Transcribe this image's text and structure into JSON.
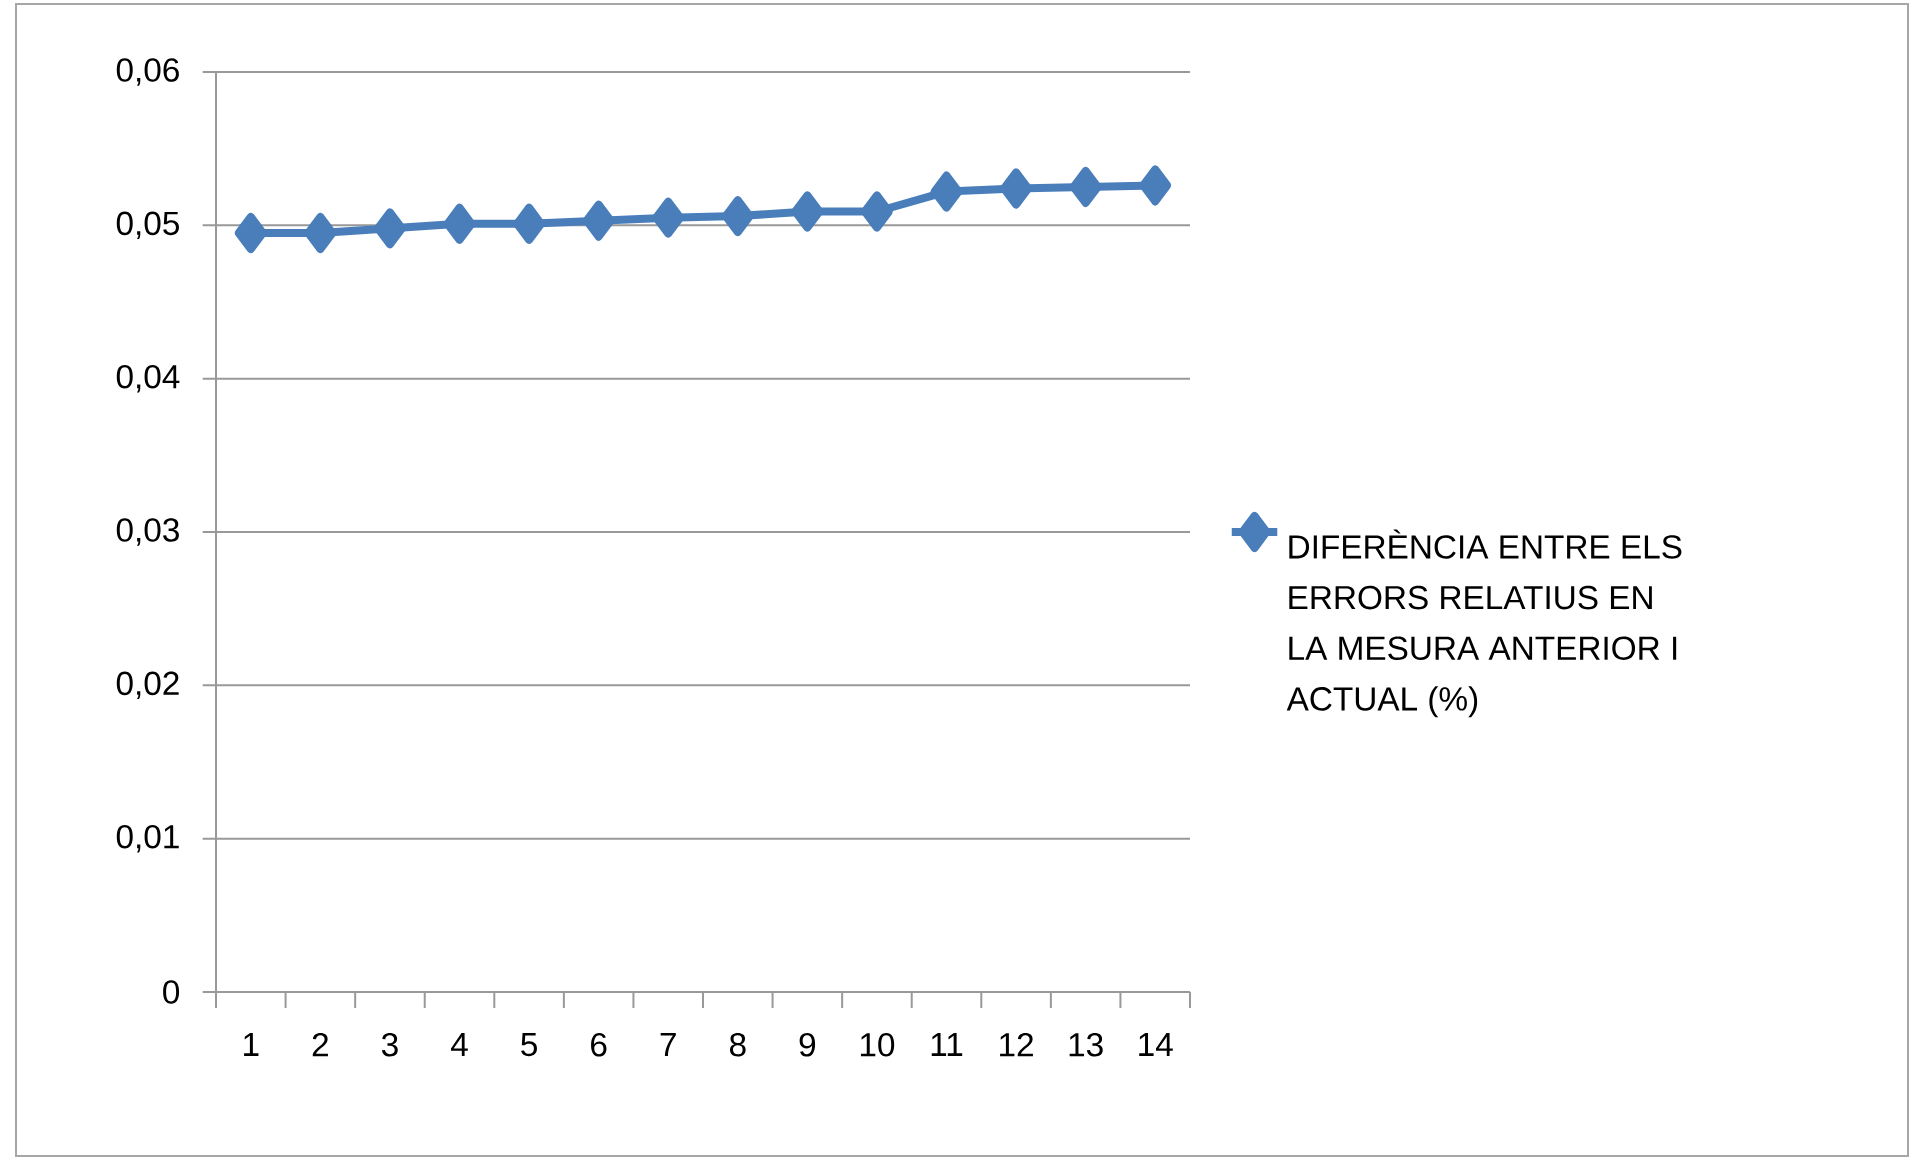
{
  "chart_data": {
    "type": "line",
    "categories": [
      "1",
      "2",
      "3",
      "4",
      "5",
      "6",
      "7",
      "8",
      "9",
      "10",
      "11",
      "12",
      "13",
      "14"
    ],
    "series": [
      {
        "name": "DIFERÈNCIA ENTRE ELS ERRORS RELATIUS EN LA MESURA ANTERIOR I ACTUAL (%)",
        "color": "#4a7ebb",
        "values": [
          0.0495,
          0.0495,
          0.0498,
          0.0501,
          0.0501,
          0.0503,
          0.0505,
          0.0506,
          0.0509,
          0.0509,
          0.0522,
          0.0524,
          0.0525,
          0.0526
        ]
      }
    ],
    "ylim": [
      0,
      0.06
    ],
    "yticks": [
      0,
      {
        "value": 0.01,
        "label": "0,01"
      },
      {
        "value": 0.02,
        "label": "0,02"
      },
      {
        "value": 0.03,
        "label": "0,03"
      },
      {
        "value": 0.04,
        "label": "0,04"
      },
      {
        "value": 0.05,
        "label": "0,05"
      },
      {
        "value": 0.06,
        "label": "0,06"
      }
    ],
    "grid": "y",
    "legend": "right",
    "marker": "diamond",
    "line_style": "solid"
  }
}
